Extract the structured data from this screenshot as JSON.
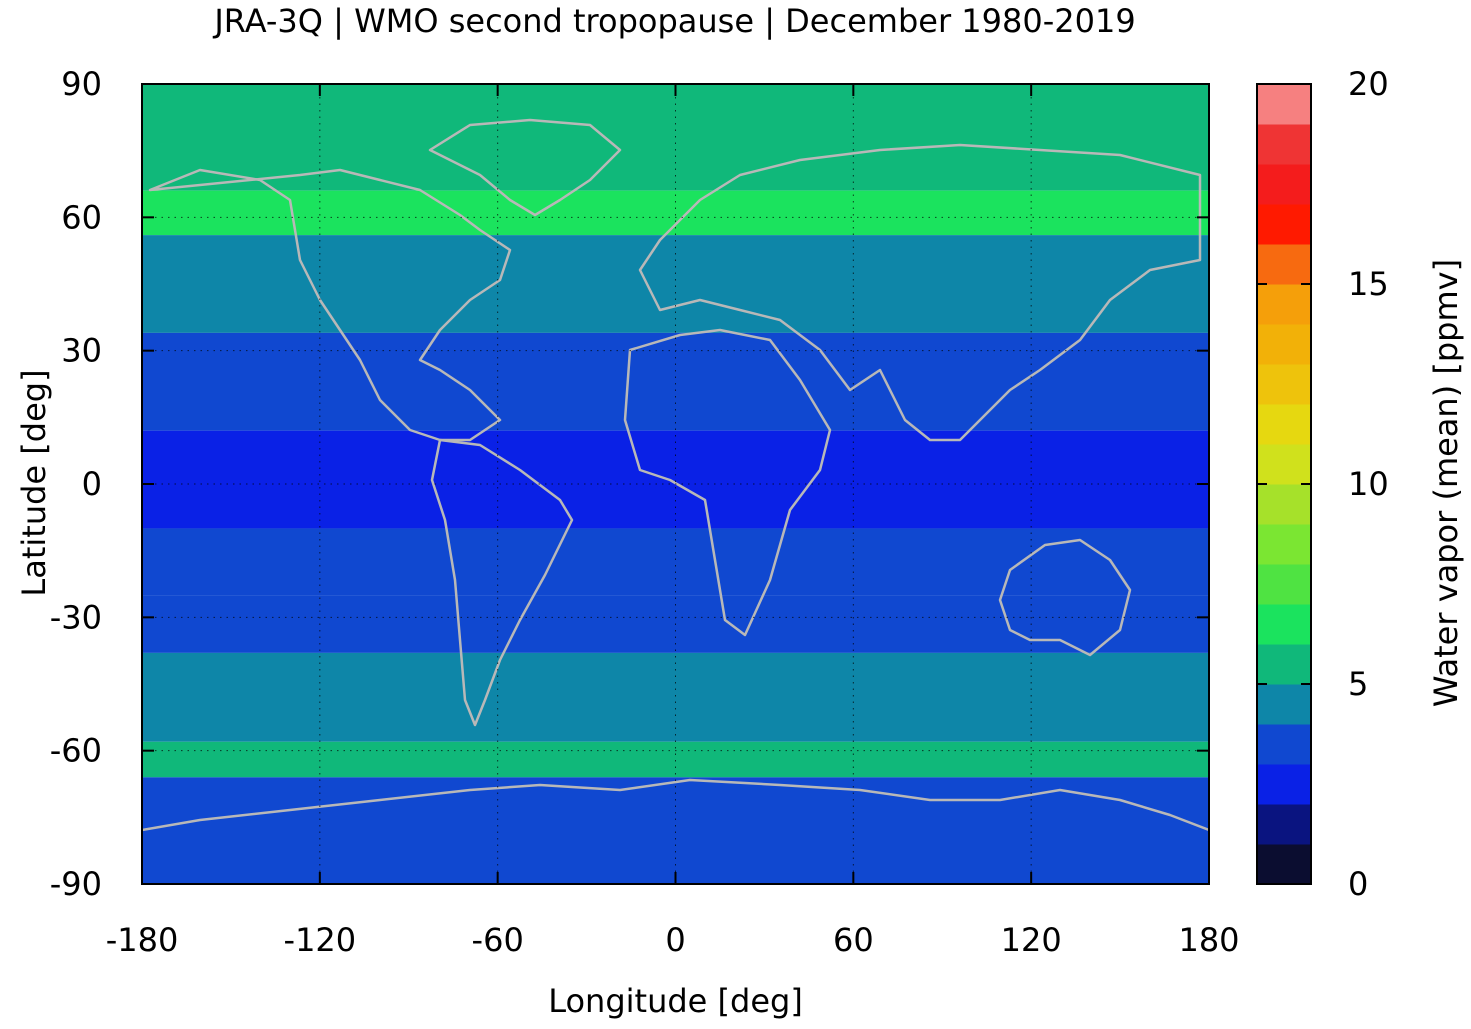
{
  "chart_data": {
    "type": "heatmap",
    "title": "JRA-3Q | WMO second tropopause | December 1980-2019",
    "xlabel": "Longitude [deg]",
    "ylabel": "Latitude [deg]",
    "colorbar_label": "Water vapor (mean) [ppmv]",
    "xlim": [
      -180,
      180
    ],
    "ylim": [
      -90,
      90
    ],
    "x_ticks": [
      -180,
      -120,
      -60,
      0,
      60,
      120,
      180
    ],
    "y_ticks": [
      90,
      60,
      30,
      0,
      -30,
      -60,
      -90
    ],
    "colorbar_ticks": [
      0,
      5,
      10,
      15,
      20
    ],
    "colorbar_range": [
      0,
      20
    ],
    "colorbar_step": 1,
    "grid": true,
    "colorscale": [
      "#0b0d30",
      "#0a1480",
      "#0a21e6",
      "#1048d0",
      "#0e86a8",
      "#10b87a",
      "#1be35e",
      "#4fe342",
      "#7be632",
      "#a6e12a",
      "#d0e11c",
      "#e6d810",
      "#eec30c",
      "#f2b108",
      "#f59f0a",
      "#f76a10",
      "#ff1a00",
      "#f41c1c",
      "#ef3434",
      "#f68080",
      "#ffd0d0"
    ],
    "latitude_bands": [
      {
        "lat": [
          66,
          90
        ],
        "value": 5.5
      },
      {
        "lat": [
          56,
          66
        ],
        "value": 6.5
      },
      {
        "lat": [
          45,
          56
        ],
        "value": 4.5
      },
      {
        "lat": [
          34,
          45
        ],
        "value": 4.2
      },
      {
        "lat": [
          12,
          34
        ],
        "value": 3.5
      },
      {
        "lat": [
          -10,
          12
        ],
        "value": 2.5
      },
      {
        "lat": [
          -25,
          -10
        ],
        "value": 3.5
      },
      {
        "lat": [
          -38,
          -25
        ],
        "value": 3.5
      },
      {
        "lat": [
          -58,
          -38
        ],
        "value": 4.5
      },
      {
        "lat": [
          -66,
          -58
        ],
        "value": 5.5
      },
      {
        "lat": [
          -90,
          -66
        ],
        "value": 3.5
      }
    ]
  }
}
